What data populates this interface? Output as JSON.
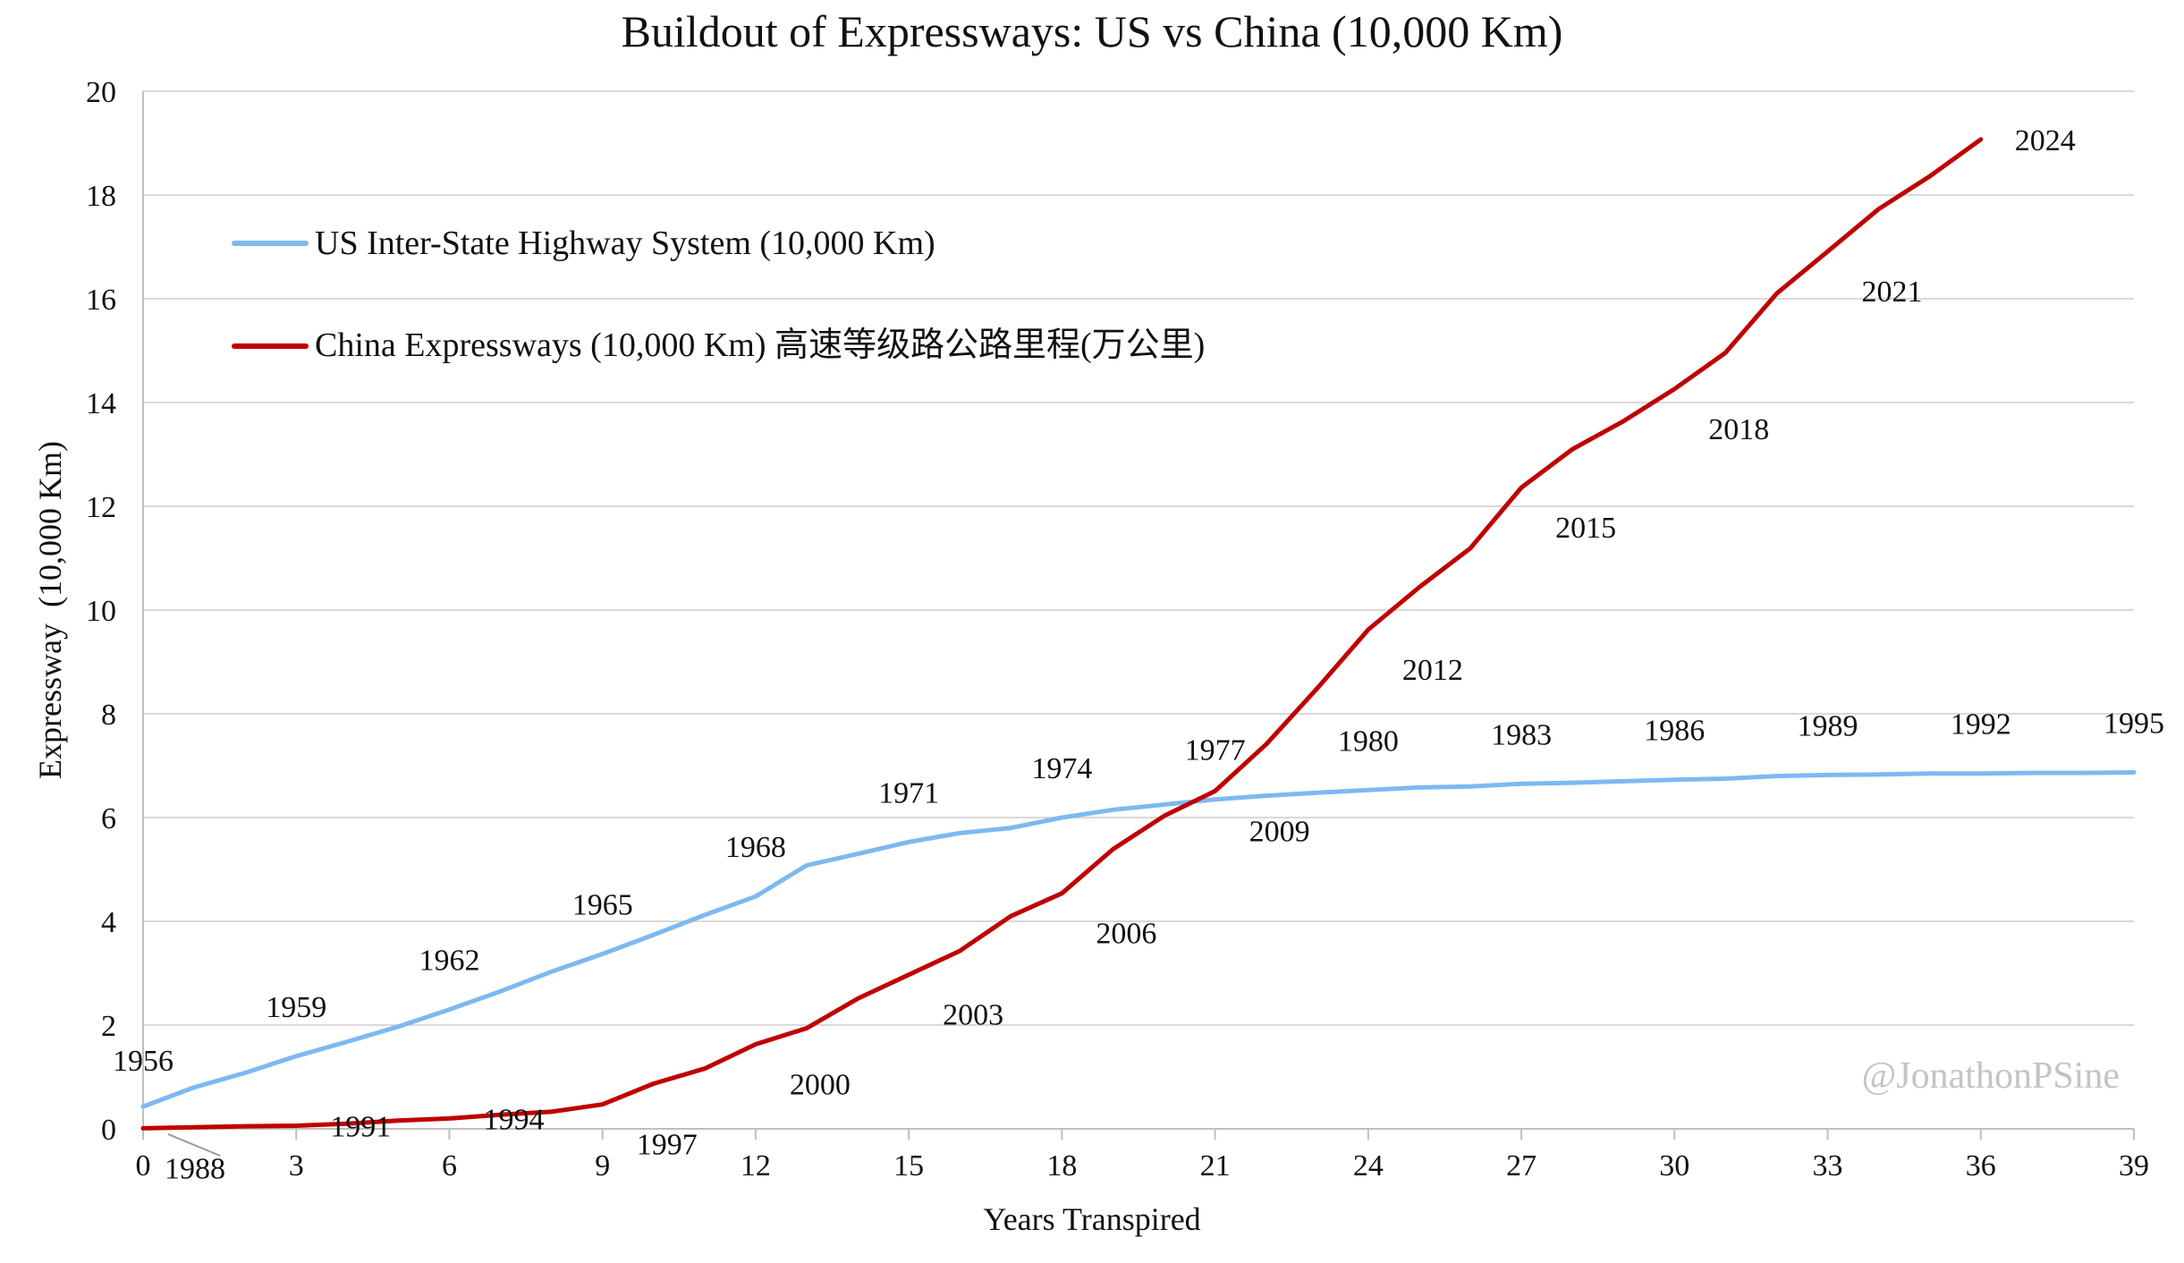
{
  "chart_data": {
    "type": "line",
    "title": "Buildout of Expressways: US vs China (10,000 Km)",
    "xlabel": "Years Transpired",
    "ylabel": "Expressway  (10,000 Km)",
    "xlim": [
      0,
      39
    ],
    "ylim": [
      0,
      20
    ],
    "x_ticks": [
      "0",
      "3",
      "6",
      "9",
      "12",
      "15",
      "18",
      "21",
      "24",
      "27",
      "30",
      "33",
      "36",
      "39"
    ],
    "y_ticks": [
      "0",
      "2",
      "4",
      "6",
      "8",
      "10",
      "12",
      "14",
      "16",
      "18",
      "20"
    ],
    "grid": "horizontal",
    "legend_position": "top-left",
    "watermark": "@JonathonPSine",
    "series": [
      {
        "name": "US Inter-State Highway System (10,000 Km)",
        "color": "#7cb9f2",
        "start_year": 1956,
        "x": [
          0,
          1,
          2,
          3,
          4,
          5,
          6,
          7,
          8,
          9,
          10,
          11,
          12,
          13,
          14,
          15,
          16,
          17,
          18,
          19,
          20,
          21,
          22,
          23,
          24,
          25,
          26,
          27,
          28,
          29,
          30,
          31,
          32,
          33,
          34,
          35,
          36,
          37,
          38,
          39
        ],
        "values": [
          0.43,
          0.8,
          1.08,
          1.4,
          1.68,
          1.97,
          2.3,
          2.65,
          3.03,
          3.37,
          3.74,
          4.12,
          4.48,
          5.08,
          5.3,
          5.53,
          5.7,
          5.8,
          6.0,
          6.15,
          6.25,
          6.35,
          6.42,
          6.48,
          6.53,
          6.58,
          6.6,
          6.65,
          6.67,
          6.7,
          6.73,
          6.75,
          6.8,
          6.82,
          6.83,
          6.85,
          6.85,
          6.86,
          6.86,
          6.87
        ],
        "year_labels": [
          {
            "x": 0,
            "year": "1956"
          },
          {
            "x": 3,
            "year": "1959"
          },
          {
            "x": 6,
            "year": "1962"
          },
          {
            "x": 9,
            "year": "1965"
          },
          {
            "x": 12,
            "year": "1968"
          },
          {
            "x": 15,
            "year": "1971"
          },
          {
            "x": 18,
            "year": "1974"
          },
          {
            "x": 21,
            "year": "1977"
          },
          {
            "x": 24,
            "year": "1980"
          },
          {
            "x": 27,
            "year": "1983"
          },
          {
            "x": 30,
            "year": "1986"
          },
          {
            "x": 33,
            "year": "1989"
          },
          {
            "x": 36,
            "year": "1992"
          },
          {
            "x": 39,
            "year": "1995"
          }
        ]
      },
      {
        "name": "China Expressways (10,000 Km) 高速等级路公路里程(万公里)",
        "color": "#c00000",
        "start_year": 1988,
        "x": [
          0,
          1,
          2,
          3,
          4,
          5,
          6,
          7,
          8,
          9,
          10,
          11,
          12,
          13,
          14,
          15,
          16,
          17,
          18,
          19,
          20,
          21,
          22,
          23,
          24,
          25,
          26,
          27,
          28,
          29,
          30,
          31,
          32,
          33,
          34,
          35,
          36
        ],
        "values": [
          0.01,
          0.03,
          0.05,
          0.06,
          0.1,
          0.16,
          0.2,
          0.27,
          0.33,
          0.47,
          0.87,
          1.16,
          1.63,
          1.94,
          2.51,
          2.97,
          3.43,
          4.1,
          4.54,
          5.39,
          6.03,
          6.51,
          7.41,
          8.49,
          9.62,
          10.44,
          11.19,
          12.36,
          13.1,
          13.64,
          14.26,
          14.96,
          16.1,
          16.91,
          17.73,
          18.36,
          19.07
        ],
        "year_labels": [
          {
            "x": 0,
            "year": "1988"
          },
          {
            "x": 3,
            "year": "1991"
          },
          {
            "x": 6,
            "year": "1994"
          },
          {
            "x": 9,
            "year": "1997"
          },
          {
            "x": 12,
            "year": "2000"
          },
          {
            "x": 15,
            "year": "2003"
          },
          {
            "x": 18,
            "year": "2006"
          },
          {
            "x": 21,
            "year": "2009"
          },
          {
            "x": 24,
            "year": "2012"
          },
          {
            "x": 27,
            "year": "2015"
          },
          {
            "x": 30,
            "year": "2018"
          },
          {
            "x": 33,
            "year": "2021"
          },
          {
            "x": 36,
            "year": "2024"
          }
        ]
      }
    ]
  }
}
